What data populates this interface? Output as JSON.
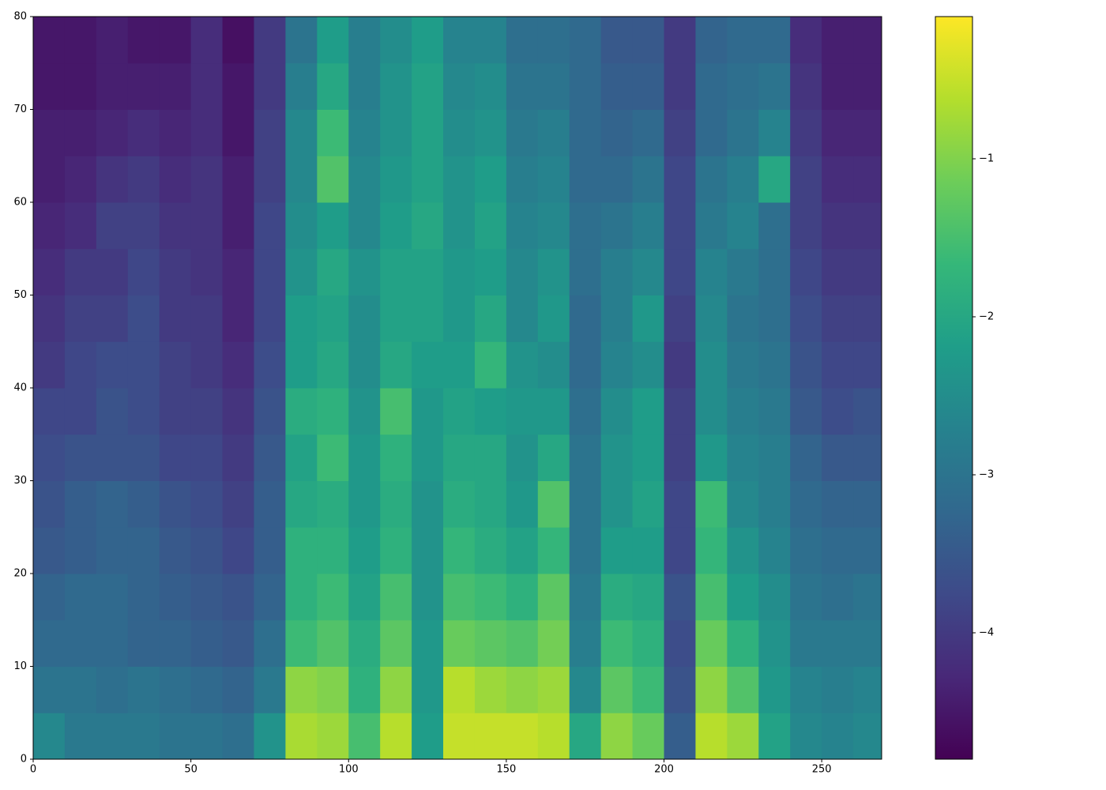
{
  "chart_data": {
    "type": "heatmap",
    "colormap": "viridis",
    "xbins": [
      0,
      10,
      20,
      30,
      40,
      50,
      60,
      70,
      80,
      90,
      100,
      110,
      120,
      130,
      140,
      150,
      160,
      170,
      180,
      190,
      200,
      210,
      220,
      230,
      240,
      250,
      260,
      269
    ],
    "ybins": [
      0,
      5,
      10,
      15,
      20,
      25,
      30,
      35,
      40,
      45,
      50,
      55,
      60,
      65,
      70,
      75,
      80
    ],
    "xlim": [
      0,
      269
    ],
    "ylim": [
      0,
      80
    ],
    "xticks": [
      0,
      50,
      100,
      150,
      200,
      250
    ],
    "yticks": [
      0,
      10,
      20,
      30,
      40,
      50,
      60,
      70,
      80
    ],
    "clim": [
      -4.8,
      -0.1
    ],
    "cticks": [
      {
        "value": -1,
        "label": "−1"
      },
      {
        "value": -2,
        "label": "−2"
      },
      {
        "value": -3,
        "label": "−3"
      },
      {
        "value": -4,
        "label": "−4"
      }
    ],
    "values": [
      [
        -2.6,
        -3.0,
        -3.2,
        -3.3,
        -3.5,
        -3.6,
        -3.7,
        -3.8,
        -4.0,
        -4.1,
        -4.2,
        -4.3,
        -4.4,
        -4.4,
        -4.5,
        -4.5
      ],
      [
        -2.9,
        -3.0,
        -3.2,
        -3.2,
        -3.4,
        -3.4,
        -3.6,
        -3.8,
        -3.8,
        -3.9,
        -4.0,
        -4.2,
        -4.3,
        -4.4,
        -4.5,
        -4.5
      ],
      [
        -2.9,
        -3.1,
        -3.2,
        -3.2,
        -3.3,
        -3.3,
        -3.6,
        -3.6,
        -3.7,
        -3.9,
        -4.0,
        -3.9,
        -4.1,
        -4.3,
        -4.4,
        -4.4
      ],
      [
        -2.9,
        -3.0,
        -3.3,
        -3.3,
        -3.3,
        -3.4,
        -3.6,
        -3.7,
        -3.7,
        -3.7,
        -3.8,
        -3.9,
        -4.0,
        -4.2,
        -4.4,
        -4.5
      ],
      [
        -3.0,
        -3.1,
        -3.3,
        -3.4,
        -3.5,
        -3.6,
        -3.8,
        -3.9,
        -3.9,
        -4.0,
        -4.0,
        -4.1,
        -4.2,
        -4.3,
        -4.4,
        -4.5
      ],
      [
        -3.0,
        -3.2,
        -3.4,
        -3.5,
        -3.6,
        -3.7,
        -3.8,
        -3.9,
        -4.0,
        -4.0,
        -4.1,
        -4.1,
        -4.1,
        -4.2,
        -4.2,
        -4.2
      ],
      [
        -3.1,
        -3.3,
        -3.5,
        -3.6,
        -3.8,
        -3.9,
        -4.0,
        -4.1,
        -4.2,
        -4.3,
        -4.3,
        -4.4,
        -4.4,
        -4.5,
        -4.5,
        -4.6
      ],
      [
        -2.4,
        -2.9,
        -3.1,
        -3.3,
        -3.4,
        -3.4,
        -3.5,
        -3.6,
        -3.7,
        -3.8,
        -3.8,
        -3.8,
        -3.9,
        -3.9,
        -4.0,
        -4.0
      ],
      [
        -0.7,
        -0.9,
        -1.6,
        -1.8,
        -1.8,
        -2.0,
        -2.1,
        -1.9,
        -2.2,
        -2.2,
        -2.4,
        -2.5,
        -2.6,
        -2.6,
        -2.8,
        -3.0
      ],
      [
        -0.8,
        -1.0,
        -1.4,
        -1.6,
        -1.8,
        -1.9,
        -1.6,
        -1.8,
        -2.0,
        -2.1,
        -2.0,
        -2.2,
        -1.4,
        -1.6,
        -2.0,
        -2.2
      ],
      [
        -1.5,
        -1.8,
        -1.9,
        -2.1,
        -2.2,
        -2.3,
        -2.3,
        -2.4,
        -2.5,
        -2.5,
        -2.4,
        -2.6,
        -2.6,
        -2.7,
        -2.8,
        -2.8
      ],
      [
        -0.6,
        -0.9,
        -1.3,
        -1.5,
        -1.8,
        -1.9,
        -1.8,
        -1.5,
        -2.0,
        -2.1,
        -2.1,
        -2.2,
        -2.3,
        -2.4,
        -2.4,
        -2.5
      ],
      [
        -2.2,
        -2.3,
        -2.3,
        -2.4,
        -2.4,
        -2.4,
        -2.3,
        -2.3,
        -2.2,
        -2.1,
        -2.1,
        -2.0,
        -2.1,
        -2.1,
        -2.1,
        -2.2
      ],
      [
        -0.5,
        -0.6,
        -1.2,
        -1.5,
        -1.7,
        -1.9,
        -2.0,
        -2.1,
        -2.2,
        -2.3,
        -2.3,
        -2.4,
        -2.4,
        -2.5,
        -2.6,
        -2.7
      ],
      [
        -0.5,
        -0.8,
        -1.3,
        -1.6,
        -1.9,
        -2.0,
        -2.0,
        -2.2,
        -1.7,
        -2.0,
        -2.2,
        -2.1,
        -2.2,
        -2.4,
        -2.5,
        -2.7
      ],
      [
        -0.5,
        -0.9,
        -1.4,
        -1.8,
        -2.1,
        -2.3,
        -2.4,
        -2.3,
        -2.4,
        -2.6,
        -2.6,
        -2.7,
        -2.8,
        -2.9,
        -3.0,
        -3.1
      ],
      [
        -0.6,
        -0.8,
        -1.1,
        -1.3,
        -1.7,
        -1.4,
        -2.0,
        -2.3,
        -2.5,
        -2.3,
        -2.4,
        -2.6,
        -2.7,
        -2.8,
        -3.0,
        -3.1
      ],
      [
        -2.0,
        -2.6,
        -2.8,
        -2.9,
        -3.0,
        -3.0,
        -3.0,
        -3.1,
        -3.2,
        -3.2,
        -3.1,
        -3.1,
        -3.2,
        -3.2,
        -3.2,
        -3.2
      ],
      [
        -0.9,
        -1.3,
        -1.6,
        -1.9,
        -2.2,
        -2.4,
        -2.4,
        -2.5,
        -2.7,
        -2.8,
        -2.8,
        -3.0,
        -3.2,
        -3.3,
        -3.4,
        -3.5
      ],
      [
        -1.2,
        -1.6,
        -1.8,
        -2.0,
        -2.2,
        -2.1,
        -2.2,
        -2.2,
        -2.5,
        -2.3,
        -2.6,
        -2.8,
        -3.0,
        -3.2,
        -3.4,
        -3.5
      ],
      [
        -3.4,
        -3.6,
        -3.7,
        -3.6,
        -3.8,
        -3.8,
        -3.9,
        -3.9,
        -4.0,
        -3.9,
        -3.8,
        -3.8,
        -3.8,
        -3.9,
        -4.0,
        -4.0
      ],
      [
        -0.6,
        -0.9,
        -1.2,
        -1.5,
        -1.7,
        -1.6,
        -2.3,
        -2.5,
        -2.5,
        -2.6,
        -2.7,
        -2.9,
        -3.0,
        -3.2,
        -3.2,
        -3.3
      ],
      [
        -0.8,
        -1.4,
        -1.8,
        -2.2,
        -2.4,
        -2.6,
        -2.7,
        -2.8,
        -2.9,
        -3.0,
        -2.9,
        -2.7,
        -2.8,
        -3.0,
        -3.1,
        -3.2
      ],
      [
        -2.1,
        -2.3,
        -2.4,
        -2.5,
        -2.7,
        -2.8,
        -2.8,
        -2.9,
        -3.0,
        -3.1,
        -3.1,
        -3.1,
        -2.0,
        -2.7,
        -3.0,
        -3.2
      ],
      [
        -2.6,
        -2.7,
        -2.9,
        -3.0,
        -3.1,
        -3.2,
        -3.3,
        -3.5,
        -3.6,
        -3.7,
        -3.8,
        -3.9,
        -3.9,
        -4.0,
        -4.1,
        -4.2
      ],
      [
        -2.7,
        -2.8,
        -2.9,
        -3.1,
        -3.2,
        -3.3,
        -3.5,
        -3.7,
        -3.8,
        -3.9,
        -4.0,
        -4.1,
        -4.2,
        -4.3,
        -4.4,
        -4.4
      ],
      [
        -2.6,
        -2.7,
        -2.9,
        -3.0,
        -3.2,
        -3.3,
        -3.5,
        -3.6,
        -3.8,
        -3.9,
        -4.0,
        -4.1,
        -4.2,
        -4.3,
        -4.4,
        -4.4
      ]
    ]
  }
}
